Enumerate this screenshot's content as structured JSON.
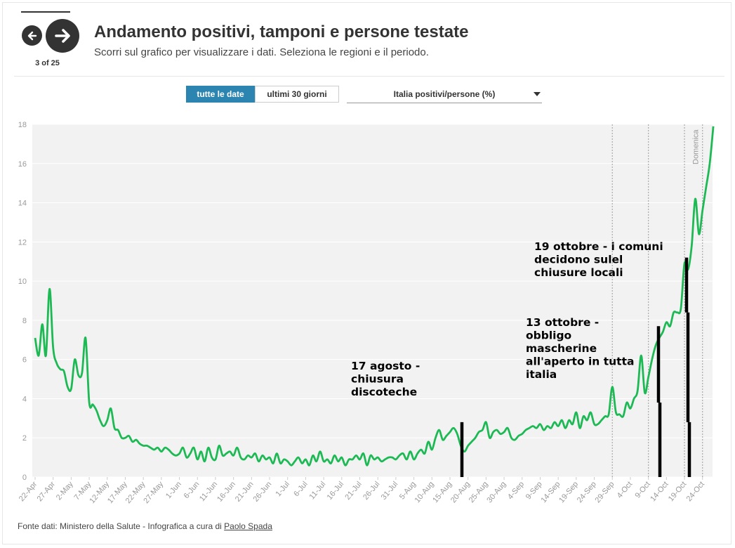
{
  "nav": {
    "counter": "3 of 25"
  },
  "header": {
    "title": "Andamento positivi, tamponi e persone testate",
    "subtitle": "Scorri sul grafico per visualizzare i dati. Seleziona le regioni e il periodo."
  },
  "controls": {
    "btn_all": "tutte le date",
    "btn_30": "ultimi 30 giorni",
    "select_value": "Italia positivi/persone (%)"
  },
  "colors": {
    "line": "#1db954",
    "active_button": "#2b85b0",
    "plot_bg": "#f2f2f2"
  },
  "chart_data": {
    "type": "line",
    "title": "",
    "xlabel": "",
    "ylabel": "",
    "ylim": [
      0,
      18
    ],
    "yticks": [
      0,
      2,
      4,
      6,
      8,
      10,
      12,
      14,
      16,
      18
    ],
    "grid": true,
    "x_start": "22-Apr",
    "x_end": "26-Oct",
    "xtick_labels": [
      "22-Apr",
      "27-Apr",
      "2-May",
      "7-May",
      "12-May",
      "17-May",
      "22-May",
      "27-May",
      "1-Jun",
      "6-Jun",
      "11-Jun",
      "16-Jun",
      "21-Jun",
      "26-Jun",
      "1-Jul",
      "6-Jul",
      "11-Jul",
      "16-Jul",
      "21-Jul",
      "26-Jul",
      "31-Jul",
      "5-Aug",
      "10-Aug",
      "15-Aug",
      "20-Aug",
      "25-Aug",
      "30-Aug",
      "4-Sep",
      "9-Sep",
      "14-Sep",
      "19-Sep",
      "24-Sep",
      "29-Sep",
      "4-Oct",
      "9-Oct",
      "14-Oct",
      "19-Oct",
      "24-Oct"
    ],
    "series": [
      {
        "values": [
          7.1,
          6.2,
          7.8,
          6.2,
          9.6,
          6.6,
          5.8,
          5.5,
          5.4,
          4.6,
          4.5,
          6.0,
          5.2,
          5.3,
          7.1,
          3.8,
          3.7,
          3.4,
          2.9,
          2.6,
          2.9,
          3.5,
          2.5,
          2.4,
          2.0,
          2.0,
          2.1,
          1.8,
          1.9,
          1.7,
          1.6,
          1.6,
          1.5,
          1.4,
          1.5,
          1.3,
          1.5,
          1.4,
          1.2,
          1.1,
          1.2,
          1.5,
          1.0,
          1.2,
          1.5,
          0.9,
          1.3,
          0.8,
          1.5,
          1.0,
          0.9,
          1.6,
          1.1,
          1.2,
          1.3,
          1.1,
          1.5,
          1.0,
          0.9,
          1.1,
          1.0,
          1.2,
          0.8,
          1.1,
          0.9,
          1.0,
          0.7,
          1.2,
          0.7,
          0.9,
          0.8,
          0.6,
          0.8,
          1.0,
          0.7,
          0.9,
          0.6,
          1.1,
          0.8,
          1.3,
          0.8,
          0.9,
          0.7,
          1.1,
          0.8,
          1.0,
          0.6,
          0.9,
          0.9,
          1.1,
          0.9,
          1.2,
          0.6,
          1.1,
          0.9,
          1.0,
          0.8,
          0.9,
          1.0,
          1.0,
          0.9,
          1.1,
          1.2,
          0.9,
          1.3,
          0.9,
          1.2,
          1.4,
          1.2,
          1.8,
          1.4,
          2.0,
          2.4,
          1.9,
          2.1,
          2.3,
          2.5,
          2.2,
          1.6,
          1.3,
          1.6,
          1.8,
          2.0,
          2.3,
          2.4,
          2.8,
          2.0,
          2.3,
          2.4,
          2.2,
          2.3,
          2.5,
          2.0,
          1.9,
          2.1,
          2.2,
          2.4,
          2.5,
          2.6,
          2.5,
          2.7,
          2.4,
          2.6,
          2.5,
          2.8,
          2.6,
          2.9,
          2.5,
          2.9,
          2.7,
          3.3,
          2.5,
          3.1,
          2.9,
          3.3,
          2.7,
          2.7,
          2.9,
          3.1,
          3.2,
          4.6,
          3.3,
          3.2,
          3.1,
          3.8,
          3.5,
          4.0,
          4.4,
          6.2,
          4.3,
          5.1,
          6.0,
          6.7,
          7.1,
          7.4,
          7.9,
          7.7,
          8.4,
          8.4,
          8.6,
          10.9,
          10.6,
          11.8,
          14.2,
          12.4,
          13.6,
          14.8,
          16.0,
          17.9
        ]
      }
    ],
    "vertical_markers": [
      "29-Sep",
      "9-Oct",
      "19-Oct",
      "24-Oct"
    ],
    "vertical_marker_label": "Domenica",
    "annotations": [
      {
        "text": [
          "17 agosto -",
          "chiusura",
          "discoteche"
        ],
        "x": "17-Aug"
      },
      {
        "text": [
          "13 ottobre -",
          "obbligo",
          "mascherine",
          "all'aperto in tutta",
          "italia"
        ],
        "x": "13-Oct"
      },
      {
        "text": [
          "19 ottobre - i comuni",
          "decidono sulel",
          "chiusure locali"
        ],
        "x": "23-Oct"
      }
    ]
  },
  "footer": {
    "text": "Fonte dati: Ministero della Salute - Infografica a cura di ",
    "link": "Paolo Spada"
  }
}
